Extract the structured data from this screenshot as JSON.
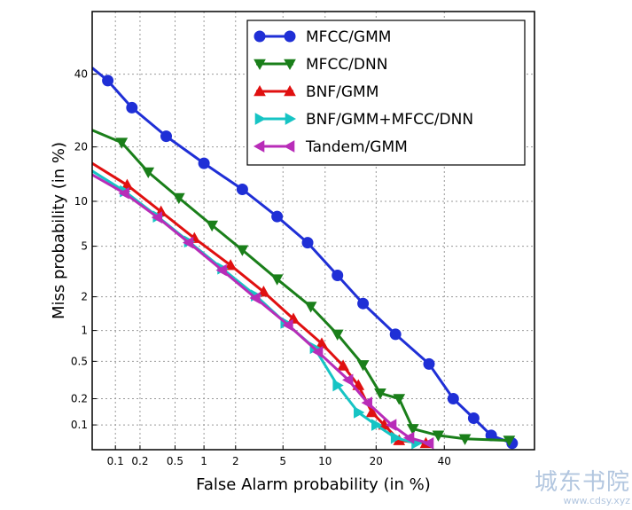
{
  "chart_data": {
    "type": "line",
    "xlabel": "False Alarm probability (in %)",
    "ylabel": "Miss probability (in %)",
    "xscale": "probit",
    "yscale": "probit",
    "xlim": [
      0.05,
      70
    ],
    "ylim": [
      0.05,
      60
    ],
    "xticks": [
      {
        "value": 0.1,
        "label": "0.1"
      },
      {
        "value": 0.2,
        "label": "0.2"
      },
      {
        "value": 0.5,
        "label": "0.5"
      },
      {
        "value": 1,
        "label": "1"
      },
      {
        "value": 2,
        "label": "2"
      },
      {
        "value": 5,
        "label": "5"
      },
      {
        "value": 10,
        "label": "10"
      },
      {
        "value": 20,
        "label": "20"
      },
      {
        "value": 40,
        "label": "40"
      }
    ],
    "yticks": [
      {
        "value": 0.1,
        "label": "0.1"
      },
      {
        "value": 0.2,
        "label": "0.2"
      },
      {
        "value": 0.5,
        "label": "0.5"
      },
      {
        "value": 1,
        "label": "1"
      },
      {
        "value": 2,
        "label": "2"
      },
      {
        "value": 5,
        "label": "5"
      },
      {
        "value": 10,
        "label": "10"
      },
      {
        "value": 20,
        "label": "20"
      },
      {
        "value": 40,
        "label": "40"
      }
    ],
    "grid": true,
    "legend_position": "top-right",
    "series": [
      {
        "name": "MFCC/GMM",
        "color": "#1f2fd6",
        "marker": "circle",
        "points": [
          [
            0.05,
            42
          ],
          [
            0.08,
            38
          ],
          [
            0.16,
            30
          ],
          [
            0.4,
            22.5
          ],
          [
            1.0,
            16.5
          ],
          [
            2.3,
            11.8
          ],
          [
            4.5,
            8.0
          ],
          [
            7.6,
            5.3
          ],
          [
            12,
            3.0
          ],
          [
            17,
            1.75
          ],
          [
            25,
            0.92
          ],
          [
            35,
            0.47
          ],
          [
            43,
            0.2
          ],
          [
            50,
            0.12
          ],
          [
            56,
            0.075
          ],
          [
            63,
            0.06
          ]
        ]
      },
      {
        "name": "MFCC/DNN",
        "color": "#1a7f1a",
        "marker": "triangle-down",
        "points": [
          [
            0.05,
            24
          ],
          [
            0.12,
            21
          ],
          [
            0.25,
            14.8
          ],
          [
            0.55,
            10.5
          ],
          [
            1.2,
            7.0
          ],
          [
            2.3,
            4.7
          ],
          [
            4.5,
            2.8
          ],
          [
            8,
            1.65
          ],
          [
            12,
            0.92
          ],
          [
            17,
            0.46
          ],
          [
            21,
            0.23
          ],
          [
            26,
            0.2
          ],
          [
            30,
            0.09
          ],
          [
            38,
            0.075
          ],
          [
            47,
            0.068
          ],
          [
            62,
            0.065
          ]
        ]
      },
      {
        "name": "BNF/GMM",
        "color": "#e01010",
        "marker": "triangle-up",
        "points": [
          [
            0.05,
            16.5
          ],
          [
            0.14,
            12.5
          ],
          [
            0.35,
            8.6
          ],
          [
            0.8,
            5.7
          ],
          [
            1.8,
            3.6
          ],
          [
            3.5,
            2.2
          ],
          [
            6,
            1.28
          ],
          [
            9.5,
            0.75
          ],
          [
            13,
            0.45
          ],
          [
            16,
            0.28
          ],
          [
            19,
            0.14
          ],
          [
            22,
            0.1
          ],
          [
            26,
            0.065
          ],
          [
            34,
            0.06
          ]
        ]
      },
      {
        "name": "BNF/GMM+MFCC/DNN",
        "color": "#16c4c4",
        "marker": "triangle-right",
        "points": [
          [
            0.05,
            15
          ],
          [
            0.13,
            11.5
          ],
          [
            0.32,
            8.0
          ],
          [
            0.7,
            5.4
          ],
          [
            1.5,
            3.4
          ],
          [
            3,
            2.05
          ],
          [
            5.2,
            1.18
          ],
          [
            8.5,
            0.68
          ],
          [
            12,
            0.28
          ],
          [
            16,
            0.14
          ],
          [
            20,
            0.1
          ],
          [
            25,
            0.07
          ],
          [
            31,
            0.06
          ]
        ]
      },
      {
        "name": "Tandem/GMM",
        "color": "#b82cb8",
        "marker": "triangle-left",
        "points": [
          [
            0.05,
            14.3
          ],
          [
            0.13,
            11.2
          ],
          [
            0.32,
            7.9
          ],
          [
            0.7,
            5.3
          ],
          [
            1.5,
            3.3
          ],
          [
            3,
            1.95
          ],
          [
            5.5,
            1.12
          ],
          [
            9,
            0.62
          ],
          [
            14,
            0.32
          ],
          [
            18,
            0.18
          ],
          [
            24,
            0.1
          ],
          [
            29,
            0.07
          ],
          [
            35,
            0.06
          ]
        ]
      }
    ]
  },
  "watermark": {
    "text": "城东书院",
    "url": "www.cdsy.xyz"
  }
}
